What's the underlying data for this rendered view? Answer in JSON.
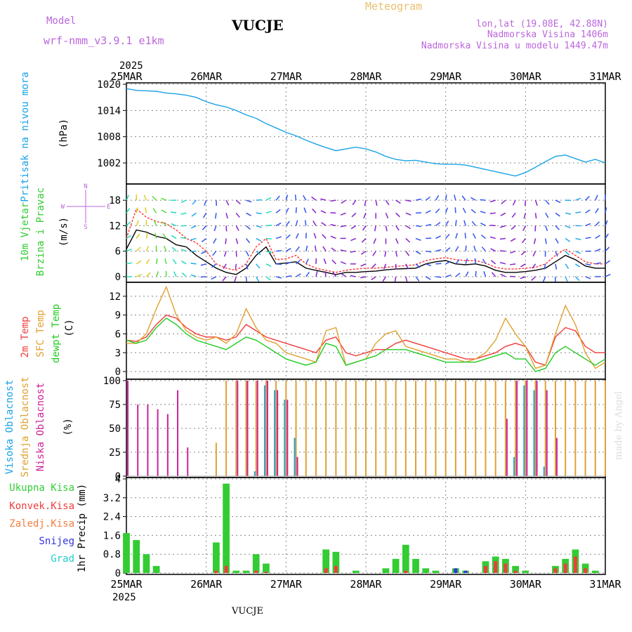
{
  "header": {
    "model_label": "Model",
    "model_name": "wrf-nmm_v3.9.1  e1km",
    "station": "VUCJE",
    "title": "Meteogram",
    "coords": "lon,lat (19.08E, 42.88N)",
    "elevation": "Nadmorska Visina 1406m",
    "model_elevation": "Nadmorska Visina u modelu 1449.47m",
    "year": "2025",
    "footer_station": "VUCJE",
    "watermark": "made by Angel"
  },
  "colors": {
    "pressure": "#1aa3e6",
    "temp2m": "#f03c3c",
    "sfc_temp": "#e0a030",
    "dewpt": "#22cc22",
    "high_cloud": "#1aa3e6",
    "mid_cloud": "#e0a030",
    "low_cloud": "#cc2299",
    "total_precip": "#33cc33",
    "convective": "#f03c3c",
    "snow": "#3333dd",
    "hail": "#22cccc",
    "frz": "#f08040",
    "axis_text": "#000000",
    "purple_text": "#bb66dd",
    "title_orange": "#e8c070"
  },
  "chart_data": [
    {
      "type": "line",
      "id": "pressure",
      "ylabel_left": "Pritisak na nivou mora",
      "units": "(hPa)",
      "yticks": [
        "1020",
        "1014",
        "1008",
        "1002"
      ],
      "ylim": [
        997.5,
        1020
      ],
      "x": [
        0,
        3,
        6,
        9,
        12,
        15,
        18,
        21,
        24,
        27,
        30,
        33,
        36,
        39,
        42,
        45,
        48,
        51,
        54,
        57,
        60,
        63,
        66,
        69,
        72,
        75,
        78,
        81,
        84,
        87,
        90,
        93,
        96,
        99,
        102,
        105,
        108,
        111,
        114,
        117,
        120,
        123,
        126,
        129,
        132,
        135,
        138,
        141,
        144
      ],
      "series": [
        {
          "name": "pressure",
          "values": [
            1019,
            1018.6,
            1018.5,
            1018.4,
            1018,
            1017.8,
            1017.5,
            1017,
            1016,
            1015.3,
            1014.8,
            1014,
            1013,
            1012.2,
            1011,
            1010,
            1009,
            1008.2,
            1007.2,
            1006.3,
            1005.5,
            1004.8,
            1005.2,
            1005.6,
            1005.2,
            1004.5,
            1003.5,
            1002.8,
            1002.5,
            1002.6,
            1002.2,
            1001.8,
            1001.7,
            1001.7,
            1001.5,
            1001,
            1000.5,
            1000,
            999.5,
            999,
            999.8,
            1001,
            1002.3,
            1003.5,
            1003.8,
            1003,
            1002.2,
            1002.8,
            1002
          ]
        }
      ]
    },
    {
      "type": "line",
      "id": "wind",
      "ylabel_left1": "10m Vjetar",
      "ylabel_left2": "Brzina i Pravac",
      "units": "(m/s)",
      "compass": {
        "n": "N",
        "s": "S",
        "e": "E",
        "w": "W"
      },
      "yticks": [
        "18",
        "12",
        "6",
        "0"
      ],
      "ylim": [
        -1,
        21.5
      ],
      "x": [
        0,
        3,
        6,
        9,
        12,
        15,
        18,
        21,
        24,
        27,
        30,
        33,
        36,
        39,
        42,
        45,
        48,
        51,
        54,
        57,
        60,
        63,
        66,
        69,
        72,
        75,
        78,
        81,
        84,
        87,
        90,
        93,
        96,
        99,
        102,
        105,
        108,
        111,
        114,
        117,
        120,
        123,
        126,
        129,
        132,
        135,
        138,
        141,
        144
      ],
      "series": [
        {
          "name": "speed",
          "values": [
            6.5,
            11,
            10.5,
            9.5,
            9,
            7.5,
            7,
            5,
            3.5,
            2,
            1,
            0.5,
            2,
            5,
            7,
            3,
            3.2,
            3.5,
            2,
            1.5,
            1,
            0.5,
            1,
            1,
            1.2,
            1.3,
            1.6,
            1.8,
            1.9,
            2,
            3,
            3.5,
            3.8,
            3,
            2.8,
            3,
            2.5,
            1.5,
            1,
            1,
            1.2,
            1.5,
            2,
            3.5,
            5,
            4,
            2.5,
            2,
            2
          ]
        },
        {
          "name": "gust",
          "values": [
            9,
            16,
            14,
            13,
            12.5,
            11,
            9,
            8,
            6,
            3,
            2,
            1.5,
            3,
            7,
            9,
            4,
            4.2,
            5,
            3,
            2,
            1.5,
            1,
            1.5,
            1.8,
            2,
            2,
            2.2,
            2.4,
            2.6,
            2.8,
            3.8,
            4.2,
            4.5,
            4,
            3.8,
            3.8,
            3.2,
            2.2,
            1.8,
            1.8,
            2,
            2.2,
            3,
            5,
            6.5,
            5,
            3.5,
            3,
            3
          ]
        }
      ]
    },
    {
      "type": "line",
      "id": "temperature",
      "ylabel_left1": "2m Temp",
      "ylabel_left2": "SFC Temp",
      "ylabel_left3": "dewpt Temp",
      "units": "(C)",
      "yticks": [
        "12",
        "9",
        "6",
        "3",
        "0"
      ],
      "ylim": [
        -1,
        14
      ],
      "x": [
        0,
        3,
        6,
        9,
        12,
        15,
        18,
        21,
        24,
        27,
        30,
        33,
        36,
        39,
        42,
        45,
        48,
        51,
        54,
        57,
        60,
        63,
        66,
        69,
        72,
        75,
        78,
        81,
        84,
        87,
        90,
        93,
        96,
        99,
        102,
        105,
        108,
        111,
        114,
        117,
        120,
        123,
        126,
        129,
        132,
        135,
        138,
        141,
        144
      ],
      "series": [
        {
          "name": "2m Temp",
          "values": [
            5,
            4.8,
            5.5,
            7.5,
            9,
            8.5,
            7,
            6,
            5.5,
            5.5,
            5,
            5.5,
            7.5,
            6.5,
            5.5,
            5,
            4.5,
            4,
            3.5,
            3,
            5,
            5.5,
            3,
            2.5,
            3,
            3.5,
            3.5,
            4.5,
            5,
            4.5,
            4,
            3.5,
            3,
            2.5,
            2,
            2,
            2.5,
            3,
            4,
            4.5,
            4,
            1.5,
            1,
            5.5,
            7,
            6.5,
            4,
            3,
            3
          ]
        },
        {
          "name": "SFC Temp",
          "values": [
            4.5,
            4.5,
            6,
            10,
            13.5,
            9,
            6.5,
            5.5,
            5,
            5.5,
            4.5,
            6,
            10,
            7,
            5,
            4.5,
            3,
            2.5,
            2,
            1.5,
            6.5,
            7,
            1,
            1.5,
            2,
            4.5,
            6,
            6.5,
            4,
            3.5,
            3,
            2.5,
            2,
            2,
            1.5,
            2,
            3,
            5,
            8.5,
            6,
            4,
            0.5,
            1,
            6,
            10.5,
            7.5,
            3,
            0.5,
            1.5
          ]
        },
        {
          "name": "dewpt Temp",
          "values": [
            5,
            4.5,
            5,
            7,
            8.5,
            7.5,
            6,
            5,
            4.5,
            4,
            3.5,
            4.5,
            5.5,
            5,
            4,
            3,
            2,
            1.5,
            1,
            1.5,
            4.5,
            4,
            1,
            1.5,
            2,
            2.5,
            3.5,
            3.5,
            3.5,
            3,
            2.5,
            2,
            1.5,
            1.5,
            1.5,
            1.5,
            2,
            2.5,
            3,
            2,
            2,
            0,
            0.5,
            3,
            4,
            3,
            2,
            1,
            2
          ]
        }
      ]
    },
    {
      "type": "bar",
      "id": "clouds",
      "ylabel_left1": "Visoka Oblacnost",
      "ylabel_left2": "Srednja Oblacnost",
      "ylabel_left3": "Niska Oblacnost",
      "units": "(%)",
      "yticks": [
        "100",
        "75",
        "50",
        "25",
        "0"
      ],
      "ylim": [
        0,
        100
      ],
      "x": [
        0,
        3,
        6,
        9,
        12,
        15,
        18,
        21,
        24,
        27,
        30,
        33,
        36,
        39,
        42,
        45,
        48,
        51,
        54,
        57,
        60,
        63,
        66,
        69,
        72,
        75,
        78,
        81,
        84,
        87,
        90,
        93,
        96,
        99,
        102,
        105,
        108,
        111,
        114,
        117,
        120,
        123,
        126,
        129,
        132,
        135,
        138,
        141,
        144
      ],
      "series": [
        {
          "name": "Visoka Oblacnost",
          "values": [
            0,
            0,
            0,
            0,
            0,
            0,
            0,
            0,
            0,
            0,
            0,
            0,
            0,
            5,
            95,
            90,
            80,
            40,
            0,
            0,
            0,
            0,
            0,
            0,
            0,
            0,
            0,
            0,
            0,
            0,
            0,
            0,
            0,
            0,
            0,
            0,
            0,
            0,
            0,
            20,
            95,
            90,
            10,
            0,
            0,
            0,
            0,
            0,
            0
          ]
        },
        {
          "name": "Srednja Oblacnost",
          "values": [
            0,
            0,
            0,
            0,
            0,
            0,
            0,
            0,
            0,
            35,
            100,
            100,
            100,
            100,
            100,
            100,
            100,
            100,
            100,
            100,
            100,
            100,
            100,
            100,
            100,
            100,
            100,
            100,
            100,
            100,
            100,
            100,
            100,
            100,
            100,
            100,
            100,
            100,
            100,
            100,
            100,
            100,
            100,
            100,
            100,
            100,
            100,
            100,
            100
          ]
        },
        {
          "name": "Niska Oblacnost",
          "values": [
            100,
            75,
            75,
            70,
            65,
            90,
            30,
            0,
            0,
            0,
            0,
            100,
            100,
            100,
            100,
            90,
            80,
            20,
            0,
            0,
            0,
            0,
            0,
            0,
            0,
            0,
            0,
            0,
            0,
            0,
            0,
            0,
            0,
            0,
            0,
            0,
            0,
            0,
            60,
            100,
            100,
            100,
            90,
            40,
            0,
            0,
            0,
            0,
            0
          ]
        }
      ]
    },
    {
      "type": "bar",
      "id": "precip",
      "legend": [
        "Ukupna  Kisa",
        "Konvek.Kisa",
        "Zaledj.Kisa",
        "Snijeg",
        "Grad"
      ],
      "units": "1hr Precip (mm)",
      "yticks": [
        "4",
        "3.2",
        "2.4",
        "1.6",
        "0.8",
        "0"
      ],
      "ylim": [
        0,
        4
      ],
      "x": [
        0,
        3,
        6,
        9,
        12,
        15,
        18,
        21,
        24,
        27,
        30,
        33,
        36,
        39,
        42,
        45,
        48,
        51,
        54,
        57,
        60,
        63,
        66,
        69,
        72,
        75,
        78,
        81,
        84,
        87,
        90,
        93,
        96,
        99,
        102,
        105,
        108,
        111,
        114,
        117,
        120,
        123,
        126,
        129,
        132,
        135,
        138,
        141,
        144
      ],
      "series": [
        {
          "name": "Ukupna  Kisa",
          "values": [
            1.7,
            1.4,
            0.8,
            0.3,
            0,
            0,
            0,
            0,
            0,
            1.3,
            3.8,
            0.1,
            0.1,
            0.8,
            0.4,
            0,
            0,
            0,
            0,
            0,
            1,
            0.9,
            0,
            0.1,
            0,
            0,
            0.2,
            0.6,
            1.2,
            0.6,
            0.2,
            0.1,
            0,
            0.2,
            0.1,
            0,
            0.5,
            0.7,
            0.6,
            0.3,
            0.1,
            0,
            0,
            0.3,
            0.6,
            1,
            0.4,
            0.1,
            0
          ]
        },
        {
          "name": "Konvek.Kisa",
          "values": [
            0,
            0,
            0,
            0,
            0,
            0,
            0,
            0,
            0,
            0.1,
            0.3,
            0,
            0,
            0.1,
            0.05,
            0,
            0,
            0,
            0,
            0,
            0.2,
            0.3,
            0,
            0,
            0,
            0,
            0,
            0,
            0.1,
            0,
            0,
            0,
            0,
            0,
            0,
            0,
            0.3,
            0.5,
            0.4,
            0.1,
            0,
            0,
            0,
            0.2,
            0.4,
            0.7,
            0.2,
            0,
            0
          ]
        },
        {
          "name": "Snijeg",
          "values": [
            0,
            0,
            0,
            0,
            0,
            0,
            0,
            0,
            0,
            0,
            0,
            0,
            0,
            0,
            0,
            0,
            0,
            0,
            0,
            0,
            0,
            0,
            0,
            0,
            0,
            0,
            0,
            0,
            0,
            0,
            0,
            0,
            0,
            0.2,
            0.1,
            0,
            0,
            0,
            0,
            0,
            0,
            0,
            0,
            0,
            0,
            0,
            0,
            0,
            0
          ]
        }
      ]
    }
  ],
  "xaxis": {
    "ticks": [
      "25MAR",
      "26MAR",
      "27MAR",
      "28MAR",
      "29MAR",
      "30MAR",
      "31MAR"
    ],
    "range_hours": [
      0,
      144
    ]
  }
}
